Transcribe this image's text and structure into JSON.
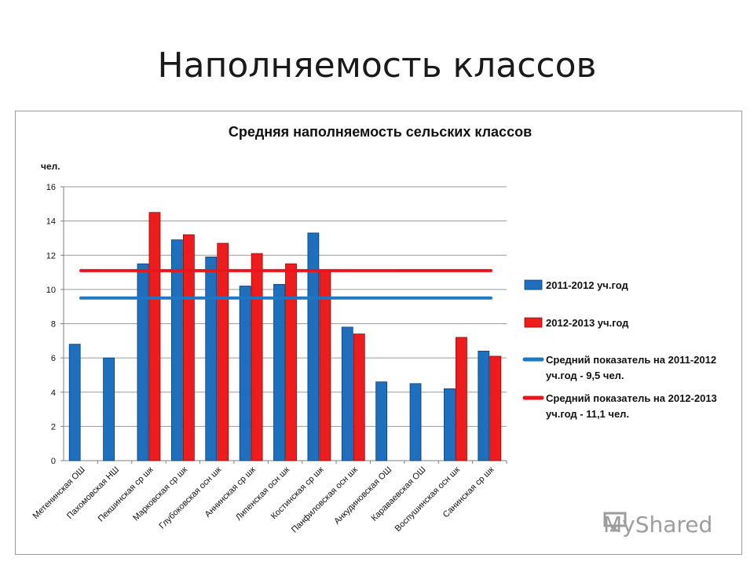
{
  "slide": {
    "title": "Наполняемость классов"
  },
  "chart_data": {
    "type": "bar",
    "title": "Средняя наполняемость сельских классов",
    "ylabel": "чел.",
    "xlabel": "",
    "ylim": [
      0,
      16
    ],
    "yticks": [
      0,
      2,
      4,
      6,
      8,
      10,
      12,
      14,
      16
    ],
    "grid": true,
    "legend_position": "right",
    "categories": [
      "Метенинская ОШ",
      "Пахомовская НШ",
      "Пекшинская ср шк",
      "Марковская ср шк",
      "Глубоковская осн шк",
      "Аннинская ср шк",
      "Липенская осн шк",
      "Костинская ср шк",
      "Панфиловская осн шк",
      "Анкудиновская ОШ",
      "Караваевская ОШ",
      "Воспушинская осн шк",
      "Санинская ср шк"
    ],
    "series": [
      {
        "name": "2011-2012 уч.год",
        "color": "#1f6fbf",
        "values": [
          6.8,
          6.0,
          11.5,
          12.9,
          11.9,
          10.2,
          10.3,
          13.3,
          7.8,
          4.6,
          4.5,
          4.2,
          6.4
        ]
      },
      {
        "name": "2012-2013 уч.год",
        "color": "#ee1c1c",
        "values": [
          null,
          null,
          14.5,
          13.2,
          12.7,
          12.1,
          11.5,
          11.1,
          7.4,
          null,
          null,
          7.2,
          6.1
        ]
      }
    ],
    "reference_lines": [
      {
        "name": "Средний показатель на 2011-2012 уч.год - 9,5 чел.",
        "value": 9.5,
        "color": "#1f77c4"
      },
      {
        "name": "Средний показатель на 2012-2013 уч.год - 11,1 чел.",
        "value": 11.1,
        "color": "#e8161c"
      }
    ]
  },
  "watermark": {
    "text": "MyShared"
  }
}
